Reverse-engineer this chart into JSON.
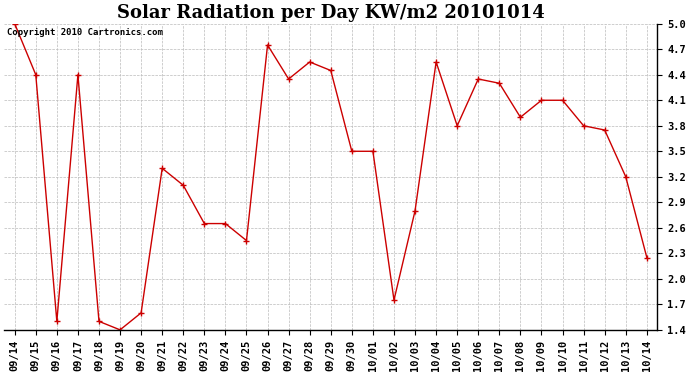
{
  "title": "Solar Radiation per Day KW/m2 20101014",
  "copyright": "Copyright 2010 Cartronics.com",
  "labels": [
    "09/14",
    "09/15",
    "09/16",
    "09/17",
    "09/18",
    "09/19",
    "09/20",
    "09/21",
    "09/22",
    "09/23",
    "09/24",
    "09/25",
    "09/26",
    "09/27",
    "09/28",
    "09/29",
    "09/30",
    "10/01",
    "10/02",
    "10/03",
    "10/04",
    "10/05",
    "10/06",
    "10/07",
    "10/08",
    "10/09",
    "10/10",
    "10/11",
    "10/12",
    "10/13",
    "10/14"
  ],
  "values": [
    5.0,
    4.4,
    1.5,
    4.4,
    1.5,
    1.4,
    1.6,
    3.3,
    3.1,
    2.65,
    2.65,
    2.45,
    4.75,
    4.35,
    4.55,
    4.45,
    3.5,
    3.5,
    1.75,
    2.8,
    4.55,
    3.8,
    4.35,
    4.3,
    3.9,
    4.1,
    4.1,
    3.8,
    3.75,
    3.2,
    2.25
  ],
  "line_color": "#cc0000",
  "marker": "+",
  "marker_size": 4,
  "background_color": "#ffffff",
  "grid_color": "#bbbbbb",
  "ylim": [
    1.4,
    5.0
  ],
  "yticks": [
    1.4,
    1.7,
    2.0,
    2.3,
    2.6,
    2.9,
    3.2,
    3.5,
    3.8,
    4.1,
    4.4,
    4.7,
    5.0
  ],
  "title_fontsize": 13,
  "tick_fontsize": 7.5,
  "copyright_fontsize": 6.5
}
